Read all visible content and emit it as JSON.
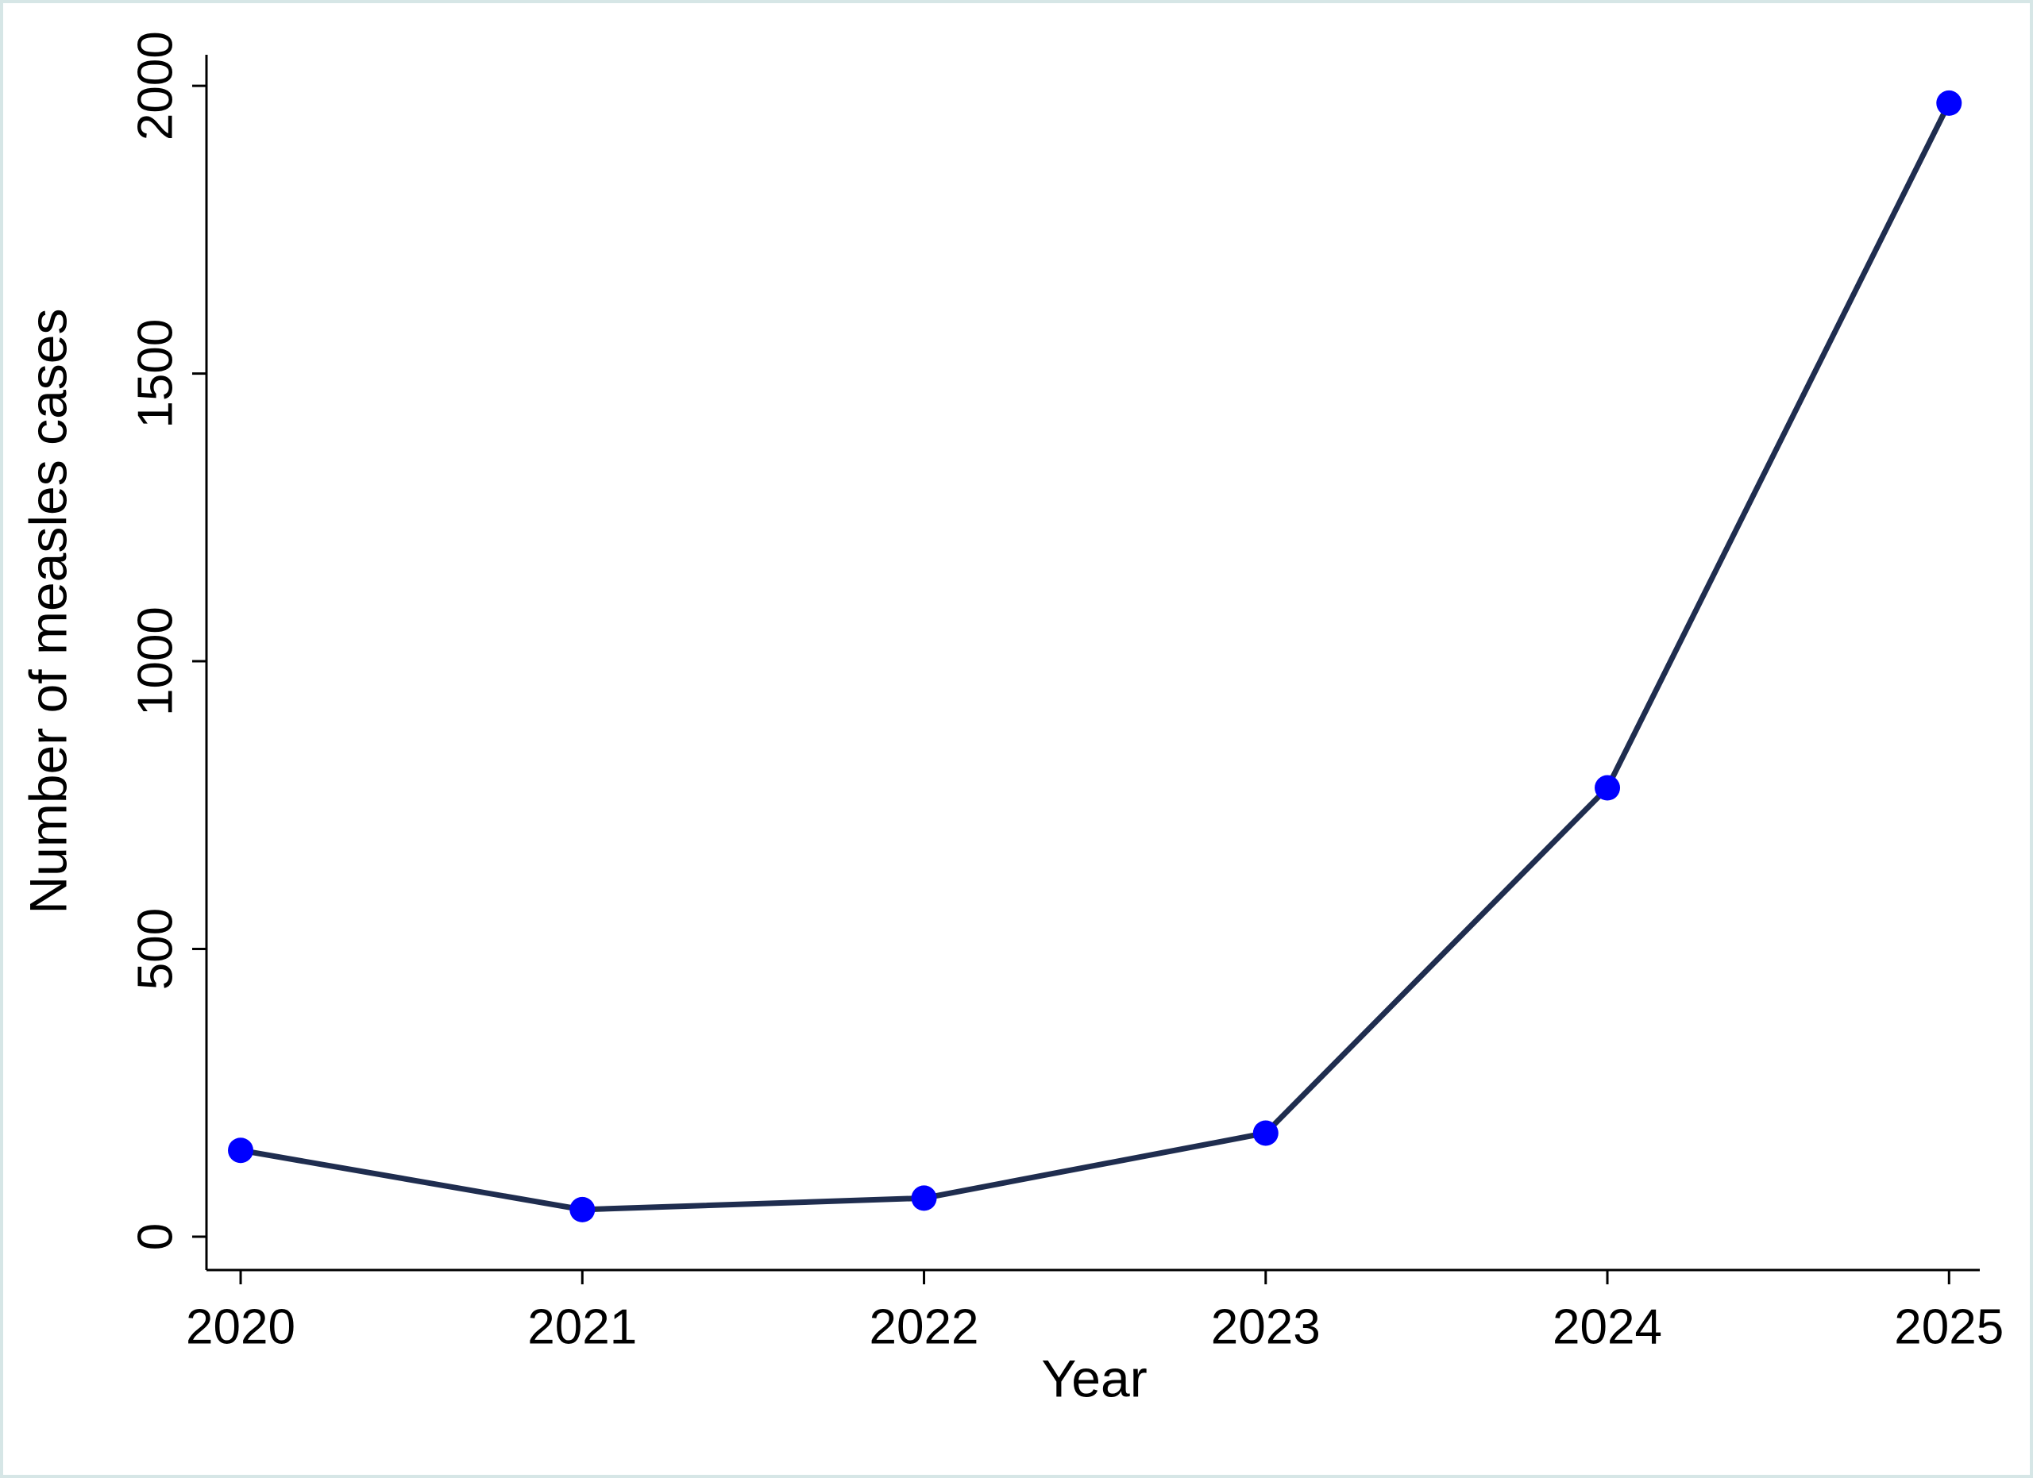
{
  "chart_data": {
    "type": "line",
    "x_label": "Year",
    "y_label": "Number of measles cases",
    "x": [
      2020,
      2021,
      2022,
      2023,
      2024,
      2025
    ],
    "values": [
      150,
      47,
      67,
      180,
      780,
      1970
    ],
    "line_color": "#1f2d4f",
    "marker_color": "#0000ff",
    "xlim": [
      2019.9,
      2025.09
    ],
    "xticks": [
      2020,
      2021,
      2022,
      2023,
      2024,
      2025
    ],
    "ylim": [
      -58,
      2054
    ],
    "yticks": [
      0,
      500,
      1000,
      1500,
      2000
    ],
    "grid": false
  }
}
